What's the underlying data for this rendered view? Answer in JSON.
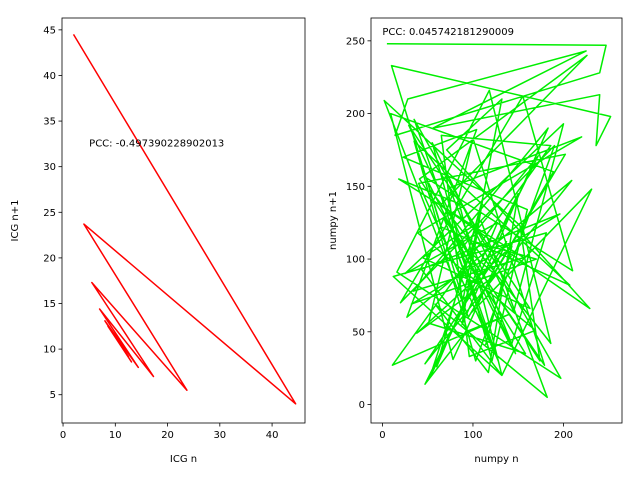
{
  "chart_data": [
    {
      "type": "line",
      "title": "",
      "xlabel": "ICG n",
      "ylabel": "ICG n+1",
      "xlim": [
        -0.2,
        46.3
      ],
      "ylim": [
        1.9,
        46.3
      ],
      "xticks": [
        0,
        10,
        20,
        30,
        40
      ],
      "yticks": [
        5,
        10,
        15,
        20,
        25,
        30,
        35,
        40,
        45
      ],
      "annotation": "PCC: -0.497390228902013",
      "annotation_pos": [
        5,
        32.2
      ],
      "color": "#ff0000",
      "grid": false,
      "x": [
        2.0,
        44.5,
        4.0,
        23.7,
        5.5,
        17.3,
        7.0,
        14.4,
        8.0,
        13.1,
        8.6,
        12.5,
        9.2,
        12.0,
        9.7,
        11.6,
        10.2,
        11.3,
        10.6,
        11.0
      ],
      "y": [
        44.5,
        4.0,
        23.7,
        5.5,
        17.3,
        7.0,
        14.4,
        8.0,
        13.1,
        8.6,
        12.5,
        9.2,
        12.0,
        9.7,
        11.6,
        10.2,
        11.3,
        10.6,
        11.0,
        10.8
      ]
    },
    {
      "type": "line",
      "title": "",
      "xlabel": "numpy n",
      "ylabel": "numpy n+1",
      "xlim": [
        -12.6,
        264.6
      ],
      "ylim": [
        -12.7,
        265.7
      ],
      "xticks": [
        0,
        100,
        200
      ],
      "yticks": [
        0,
        50,
        100,
        150,
        200,
        250
      ],
      "annotation": "PCC: 0.045742181290009",
      "annotation_pos": [
        0,
        254
      ],
      "color": "#00ee00",
      "grid": false,
      "x": [
        5,
        247,
        240,
        14,
        28,
        225,
        56,
        240,
        236,
        252,
        10,
        65,
        207,
        35,
        103,
        190,
        20,
        155,
        210,
        48,
        142,
        181,
        12,
        132,
        231,
        98,
        202,
        40,
        128,
        35,
        197,
        16,
        118,
        186,
        52,
        89,
        132,
        71,
        229,
        64,
        226,
        41,
        174,
        152,
        2,
        95,
        189,
        9,
        78,
        137,
        47,
        209,
        27,
        104,
        23,
        160,
        121,
        55,
        145,
        200,
        25,
        127,
        60,
        111,
        88,
        183,
        34,
        156,
        18,
        85,
        132,
        43,
        196,
        32,
        170,
        101,
        52,
        150,
        117,
        58,
        182,
        109,
        44,
        163,
        29,
        147,
        74,
        220,
        39,
        169,
        96,
        65,
        186,
        11,
        140,
        92,
        47,
        172,
        83,
        121,
        68,
        179,
        100,
        51,
        158,
        80,
        125,
        38,
        143,
        114
      ],
      "y": [
        248,
        247,
        228,
        185,
        210,
        243,
        190,
        213,
        178,
        198,
        233,
        122,
        82,
        181,
        30,
        178,
        70,
        212,
        92,
        156,
        40,
        118,
        88,
        20,
        148,
        63,
        172,
        152,
        30,
        196,
        18,
        91,
        216,
        42,
        148,
        72,
        210,
        175,
        66,
        137,
        240,
        155,
        30,
        123,
        209,
        60,
        160,
        200,
        31,
        112,
        28,
        154,
        60,
        189,
        170,
        134,
        30,
        180,
        64,
        193,
        90,
        125,
        26,
        142,
        55,
        190,
        78,
        101,
        155,
        138,
        20,
        93,
        131,
        69,
        100,
        112,
        18,
        145,
        22,
        69,
        5,
        126,
        101,
        66,
        192,
        35,
        149,
        184,
        118,
        51,
        33,
        185,
        178,
        27,
        62,
        50,
        14,
        171,
        104,
        40,
        128,
        27,
        183,
        56,
        35,
        114,
        89,
        49,
        109,
        41
      ]
    }
  ]
}
